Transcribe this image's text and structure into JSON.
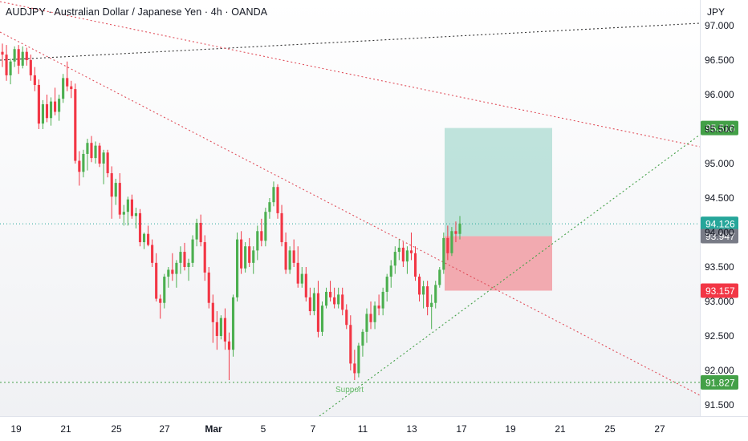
{
  "header": {
    "title": "AUDJPY · Australian Dollar / Japanese Yen · 4h · OANDA"
  },
  "currency": "JPY",
  "chart_data": {
    "type": "candlestick",
    "ylim": [
      91.32,
      97.2
    ],
    "y_ticks": [
      "97.000",
      "96.500",
      "96.000",
      "95.500",
      "95.000",
      "94.500",
      "94.000",
      "93.500",
      "93.000",
      "92.500",
      "92.000",
      "91.500"
    ],
    "x_ticks": [
      "19",
      "21",
      "25",
      "27",
      "Mar",
      "5",
      "7",
      "11",
      "13",
      "17",
      "19",
      "21",
      "25",
      "27"
    ],
    "price_labels": [
      {
        "value": "95.516",
        "color": "#43a047",
        "type": "take-profit"
      },
      {
        "value": "94.126",
        "color": "#26a69a",
        "type": "last-price"
      },
      {
        "value": "93.947",
        "color": "#787b86",
        "type": "entry"
      },
      {
        "value": "93.157",
        "color": "#f23645",
        "type": "stop-loss"
      },
      {
        "value": "91.827",
        "color": "#43a047",
        "type": "support"
      }
    ],
    "annotations": [
      {
        "text": "Support",
        "color": "#66bb6a"
      }
    ],
    "position": {
      "type": "long",
      "entry": 93.947,
      "target": 95.516,
      "stop": 93.157
    },
    "colors": {
      "up": "#4caf50",
      "down": "#f23645",
      "profit_zone": "#a5d9ce",
      "loss_zone": "#f19ca3"
    },
    "candles": [
      [
        96.62,
        96.74,
        96.4,
        96.58
      ],
      [
        96.58,
        96.72,
        96.2,
        96.28
      ],
      [
        96.28,
        96.52,
        96.15,
        96.48
      ],
      [
        96.48,
        96.7,
        96.4,
        96.66
      ],
      [
        96.66,
        96.72,
        96.3,
        96.42
      ],
      [
        96.42,
        96.7,
        96.38,
        96.62
      ],
      [
        96.62,
        96.68,
        96.42,
        96.5
      ],
      [
        96.5,
        96.58,
        96.2,
        96.28
      ],
      [
        96.28,
        96.4,
        96.05,
        96.14
      ],
      [
        96.14,
        96.22,
        95.5,
        95.58
      ],
      [
        95.58,
        95.92,
        95.5,
        95.86
      ],
      [
        95.86,
        96.0,
        95.6,
        95.66
      ],
      [
        95.66,
        95.96,
        95.55,
        95.9
      ],
      [
        95.9,
        96.1,
        95.7,
        95.75
      ],
      [
        95.75,
        96.0,
        95.62,
        95.94
      ],
      [
        95.94,
        96.3,
        95.88,
        96.24
      ],
      [
        96.24,
        96.48,
        96.05,
        96.12
      ],
      [
        96.12,
        96.2,
        95.95,
        96.08
      ],
      [
        96.08,
        96.16,
        95.0,
        95.04
      ],
      [
        95.04,
        95.18,
        94.68,
        94.88
      ],
      [
        94.88,
        95.2,
        94.8,
        95.14
      ],
      [
        95.14,
        95.36,
        94.9,
        95.3
      ],
      [
        95.3,
        95.4,
        95.02,
        95.08
      ],
      [
        95.08,
        95.32,
        95.0,
        95.26
      ],
      [
        95.26,
        95.3,
        94.95,
        95.0
      ],
      [
        95.0,
        95.2,
        94.7,
        95.16
      ],
      [
        95.16,
        95.2,
        94.8,
        94.86
      ],
      [
        94.86,
        94.96,
        94.2,
        94.52
      ],
      [
        94.52,
        94.78,
        94.4,
        94.72
      ],
      [
        94.72,
        94.86,
        94.2,
        94.26
      ],
      [
        94.26,
        94.4,
        94.1,
        94.3
      ],
      [
        94.3,
        94.52,
        94.1,
        94.48
      ],
      [
        94.48,
        94.55,
        94.2,
        94.24
      ],
      [
        94.24,
        94.36,
        94.06,
        94.28
      ],
      [
        94.28,
        94.34,
        93.8,
        93.86
      ],
      [
        93.86,
        94.0,
        93.76,
        93.98
      ],
      [
        93.98,
        94.1,
        93.8,
        93.82
      ],
      [
        93.82,
        93.9,
        93.5,
        93.56
      ],
      [
        93.56,
        93.7,
        93.0,
        93.04
      ],
      [
        93.04,
        93.1,
        92.75,
        92.98
      ],
      [
        92.98,
        93.4,
        92.9,
        93.36
      ],
      [
        93.36,
        93.5,
        93.2,
        93.46
      ],
      [
        93.46,
        93.7,
        93.3,
        93.4
      ],
      [
        93.4,
        93.6,
        93.2,
        93.56
      ],
      [
        93.56,
        93.8,
        93.4,
        93.72
      ],
      [
        93.72,
        93.85,
        93.45,
        93.5
      ],
      [
        93.5,
        93.62,
        93.3,
        93.56
      ],
      [
        93.56,
        93.96,
        93.5,
        93.9
      ],
      [
        93.9,
        94.2,
        93.8,
        94.14
      ],
      [
        94.14,
        94.26,
        93.8,
        93.86
      ],
      [
        93.86,
        93.96,
        93.3,
        93.42
      ],
      [
        93.42,
        93.5,
        92.9,
        92.98
      ],
      [
        92.98,
        93.1,
        92.4,
        92.7
      ],
      [
        92.7,
        92.86,
        92.3,
        92.5
      ],
      [
        92.5,
        92.8,
        92.45,
        92.76
      ],
      [
        92.76,
        92.9,
        92.3,
        92.42
      ],
      [
        92.42,
        92.55,
        91.86,
        92.3
      ],
      [
        92.3,
        93.1,
        92.2,
        93.06
      ],
      [
        93.06,
        94.0,
        93.0,
        93.9
      ],
      [
        93.9,
        94.02,
        93.4,
        93.48
      ],
      [
        93.48,
        93.86,
        93.42,
        93.8
      ],
      [
        93.8,
        93.92,
        93.5,
        93.56
      ],
      [
        93.56,
        93.8,
        93.4,
        93.74
      ],
      [
        93.74,
        94.1,
        93.6,
        94.02
      ],
      [
        94.02,
        94.2,
        93.8,
        93.88
      ],
      [
        93.88,
        94.36,
        93.8,
        94.3
      ],
      [
        94.3,
        94.5,
        94.2,
        94.44
      ],
      [
        94.44,
        94.74,
        94.38,
        94.66
      ],
      [
        94.66,
        94.7,
        94.2,
        94.28
      ],
      [
        94.28,
        94.4,
        93.8,
        93.86
      ],
      [
        93.86,
        94.0,
        93.4,
        93.46
      ],
      [
        93.46,
        93.8,
        93.4,
        93.74
      ],
      [
        93.74,
        93.9,
        93.5,
        93.56
      ],
      [
        93.56,
        93.8,
        93.2,
        93.26
      ],
      [
        93.26,
        93.5,
        93.2,
        93.4
      ],
      [
        93.4,
        93.5,
        93.0,
        93.06
      ],
      [
        93.06,
        93.2,
        92.8,
        92.86
      ],
      [
        92.86,
        93.2,
        92.8,
        93.12
      ],
      [
        93.12,
        93.3,
        92.48,
        92.56
      ],
      [
        92.56,
        93.0,
        92.5,
        92.94
      ],
      [
        92.94,
        93.2,
        92.9,
        93.14
      ],
      [
        93.14,
        93.3,
        93.0,
        93.06
      ],
      [
        93.06,
        93.2,
        92.9,
        92.96
      ],
      [
        92.96,
        93.2,
        92.9,
        93.1
      ],
      [
        93.1,
        93.2,
        92.8,
        92.88
      ],
      [
        92.88,
        92.96,
        92.6,
        92.66
      ],
      [
        92.66,
        92.8,
        92.0,
        92.1
      ],
      [
        92.1,
        92.3,
        91.86,
        91.96
      ],
      [
        91.96,
        92.4,
        91.9,
        92.36
      ],
      [
        92.36,
        92.6,
        92.2,
        92.56
      ],
      [
        92.56,
        92.9,
        92.4,
        92.82
      ],
      [
        92.82,
        93.0,
        92.6,
        92.7
      ],
      [
        92.7,
        93.0,
        92.6,
        92.94
      ],
      [
        92.94,
        93.1,
        92.8,
        92.9
      ],
      [
        92.9,
        93.2,
        92.8,
        93.14
      ],
      [
        93.14,
        93.4,
        93.0,
        93.36
      ],
      [
        93.36,
        93.6,
        93.2,
        93.52
      ],
      [
        93.52,
        93.8,
        93.4,
        93.72
      ],
      [
        93.72,
        93.9,
        93.6,
        93.78
      ],
      [
        93.78,
        93.86,
        93.5,
        93.58
      ],
      [
        93.58,
        93.8,
        93.4,
        93.74
      ],
      [
        93.74,
        94.0,
        93.6,
        93.7
      ],
      [
        93.7,
        93.8,
        93.3,
        93.36
      ],
      [
        93.36,
        93.4,
        93.0,
        93.1
      ],
      [
        93.1,
        93.3,
        92.9,
        93.22
      ],
      [
        93.22,
        93.3,
        92.8,
        92.92
      ],
      [
        92.92,
        93.1,
        92.6,
        92.98
      ],
      [
        92.98,
        93.3,
        92.9,
        93.24
      ],
      [
        93.24,
        93.5,
        93.2,
        93.46
      ],
      [
        93.46,
        94.0,
        93.4,
        93.92
      ],
      [
        93.92,
        94.1,
        93.6,
        93.7
      ],
      [
        93.7,
        94.08,
        93.66,
        94.02
      ],
      [
        94.02,
        94.16,
        93.86,
        93.98
      ],
      [
        93.98,
        94.24,
        93.9,
        94.13
      ]
    ]
  }
}
